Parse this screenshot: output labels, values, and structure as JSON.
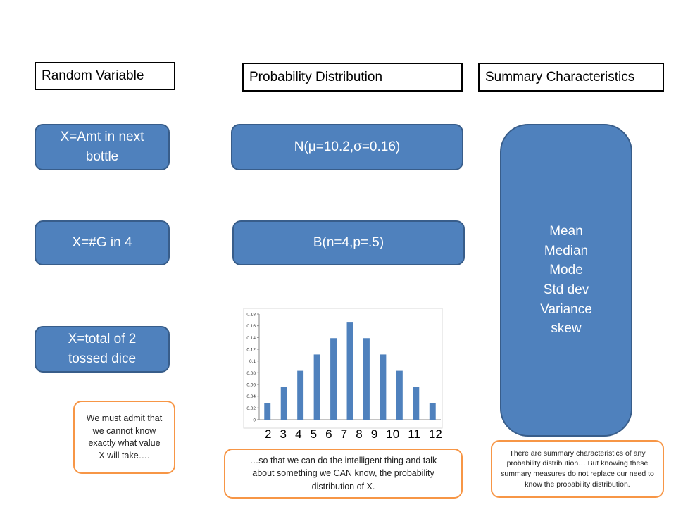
{
  "headers": {
    "random_variable": "Random Variable",
    "probability_distribution": "Probability Distribution",
    "summary_characteristics": "Summary Characteristics"
  },
  "variables": [
    {
      "label": "X=Amt in next bottle"
    },
    {
      "label": "X=#G in 4"
    },
    {
      "label": "X=total of 2 tossed dice"
    }
  ],
  "distributions": [
    {
      "label": "N(μ=10.2,σ=0.16)"
    },
    {
      "label": "B(n=4,p=.5)"
    }
  ],
  "summary_list": [
    "Mean",
    "Median",
    "Mode",
    "Std dev",
    "Variance",
    "skew"
  ],
  "notes": {
    "left": "We must admit that we cannot know exactly what value X will take….",
    "middle": "…so that we can do the intelligent thing and talk about something we CAN know, the probability distribution of X.",
    "right": "There are summary characteristics of any probability distribution… But knowing these summary measures do not replace our need to know the probability distribution."
  },
  "colors": {
    "box_fill": "#4f81bd",
    "box_border": "#385d8a",
    "note_border": "#f79646",
    "bar": "#4f81bd"
  },
  "chart_data": {
    "type": "bar",
    "categories": [
      "2",
      "3",
      "4",
      "5",
      "6",
      "7",
      "8",
      "9",
      "10",
      "11",
      "12"
    ],
    "values": [
      0.0278,
      0.0556,
      0.0833,
      0.1111,
      0.1389,
      0.1667,
      0.1389,
      0.1111,
      0.0833,
      0.0556,
      0.0278
    ],
    "yticks": [
      "0",
      "0.02",
      "0.04",
      "0.06",
      "0.08",
      "0.1",
      "0.12",
      "0.14",
      "0.16",
      "0.18"
    ],
    "ylim": [
      0,
      0.18
    ],
    "grid": false,
    "legend": "none"
  }
}
